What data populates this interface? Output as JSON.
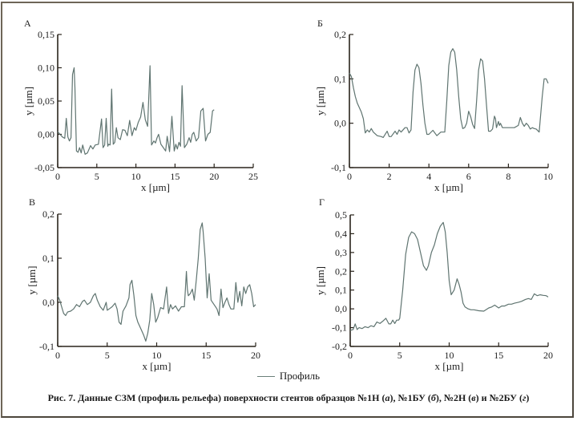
{
  "figure": {
    "legend_label": "Профиль",
    "caption": {
      "prefix": "Рис. 7. Данные СЗМ (профиль рельефа) поверхности стентов образцов №1Н (",
      "a": "а",
      "sep1": "), №1БУ (",
      "b": "б",
      "sep2": "), №2Н (",
      "c": "в",
      "sep3": ") и №2БУ (",
      "d": "г",
      "suffix": ")"
    },
    "line_color": "#5f7470",
    "axis_color": "#2a241c"
  },
  "chart_data": [
    {
      "type": "line",
      "panel": "А",
      "xlabel": "x [µm]",
      "ylabel": "y [µm]",
      "xlim": [
        0,
        25
      ],
      "ylim": [
        -0.05,
        0.15
      ],
      "xticks": [
        0,
        5,
        10,
        15,
        20,
        25
      ],
      "xtick_labels": [
        "0",
        "5",
        "10",
        "15",
        "20",
        "25"
      ],
      "yticks": [
        -0.05,
        0,
        0.05,
        0.1,
        0.15
      ],
      "ytick_labels": [
        "-0,05",
        "0,00",
        "0,05",
        "0,10",
        "0,15"
      ],
      "series": [
        {
          "name": "Профиль",
          "x": [
            0,
            0.3,
            0.6,
            0.9,
            1.1,
            1.3,
            1.5,
            1.7,
            1.9,
            2.1,
            2.2,
            2.4,
            2.6,
            2.8,
            3.0,
            3.2,
            3.5,
            3.8,
            4.2,
            4.5,
            4.8,
            5.2,
            5.6,
            5.8,
            6.0,
            6.2,
            6.4,
            6.5,
            6.7,
            6.9,
            7.1,
            7.3,
            7.5,
            7.7,
            8.0,
            8.3,
            8.6,
            8.9,
            9.2,
            9.5,
            9.8,
            10.0,
            10.3,
            10.6,
            10.9,
            11.2,
            11.5,
            11.8,
            12.0,
            12.3,
            12.5,
            12.7,
            12.9,
            13.2,
            13.5,
            13.8,
            14.0,
            14.3,
            14.6,
            14.9,
            15.1,
            15.3,
            15.5,
            15.7,
            15.9,
            16.2,
            16.5,
            16.8,
            17.0,
            17.2,
            17.4,
            17.7,
            18.0,
            18.3,
            18.6,
            18.9,
            19.2,
            19.5,
            19.8,
            20.0
          ],
          "y": [
            0.004,
            0.0,
            -0.004,
            -0.006,
            0.024,
            -0.004,
            -0.01,
            -0.005,
            0.09,
            0.1,
            0.07,
            -0.025,
            -0.027,
            -0.02,
            -0.028,
            -0.016,
            -0.03,
            -0.028,
            -0.017,
            -0.022,
            -0.016,
            -0.015,
            0.023,
            -0.02,
            -0.016,
            0.024,
            -0.018,
            -0.015,
            -0.016,
            0.068,
            -0.015,
            -0.012,
            0.01,
            -0.005,
            -0.008,
            0.007,
            0.006,
            -0.002,
            0.021,
            -0.002,
            0.01,
            0.006,
            0.018,
            0.026,
            0.048,
            0.022,
            0.012,
            0.103,
            -0.016,
            -0.01,
            -0.013,
            -0.005,
            0.0,
            -0.015,
            -0.02,
            -0.025,
            -0.003,
            -0.026,
            0.027,
            -0.025,
            -0.015,
            -0.022,
            -0.012,
            -0.018,
            0.073,
            -0.02,
            -0.015,
            -0.005,
            -0.012,
            0.0,
            0.003,
            -0.01,
            -0.005,
            0.035,
            0.039,
            -0.01,
            0.0,
            0.003,
            0.035,
            0.037
          ]
        }
      ]
    },
    {
      "type": "line",
      "panel": "Б",
      "xlabel": "x [µm]",
      "ylabel": "y [µm]",
      "xlim": [
        0,
        10
      ],
      "ylim": [
        -0.1,
        0.2
      ],
      "xticks": [
        0,
        2,
        4,
        6,
        8,
        10
      ],
      "xtick_labels": [
        "0",
        "2",
        "4",
        "6",
        "8",
        "10"
      ],
      "yticks": [
        -0.1,
        0.0,
        0.1,
        0.2
      ],
      "ytick_labels": [
        "-0,1",
        "0,0",
        "0,1",
        "0,2"
      ],
      "series": [
        {
          "name": "Профиль",
          "x": [
            0,
            0.1,
            0.2,
            0.3,
            0.4,
            0.5,
            0.6,
            0.7,
            0.8,
            0.9,
            1.0,
            1.1,
            1.2,
            1.4,
            1.6,
            1.7,
            1.9,
            2.0,
            2.1,
            2.3,
            2.4,
            2.5,
            2.6,
            2.8,
            2.9,
            3.0,
            3.1,
            3.2,
            3.3,
            3.4,
            3.5,
            3.6,
            3.7,
            3.8,
            3.9,
            4.0,
            4.2,
            4.4,
            4.6,
            4.8,
            4.9,
            5.0,
            5.1,
            5.2,
            5.3,
            5.4,
            5.5,
            5.6,
            5.7,
            5.8,
            5.9,
            6.0,
            6.1,
            6.2,
            6.3,
            6.4,
            6.5,
            6.6,
            6.7,
            6.8,
            6.9,
            7.0,
            7.1,
            7.2,
            7.3,
            7.35,
            7.4,
            7.5,
            7.55,
            7.6,
            7.7,
            8.0,
            8.3,
            8.5,
            8.6,
            8.7,
            8.8,
            8.9,
            9.0,
            9.1,
            9.2,
            9.3,
            9.4,
            9.55,
            9.7,
            9.8,
            9.9,
            10.0
          ],
          "y": [
            0.113,
            0.105,
            0.08,
            0.06,
            0.045,
            0.035,
            0.025,
            0.01,
            -0.022,
            -0.015,
            -0.02,
            -0.012,
            -0.02,
            -0.028,
            -0.03,
            -0.032,
            -0.018,
            -0.03,
            -0.03,
            -0.018,
            -0.025,
            -0.015,
            -0.02,
            -0.01,
            -0.01,
            -0.022,
            -0.015,
            0.07,
            0.12,
            0.133,
            0.125,
            0.09,
            0.04,
            0.0,
            -0.025,
            -0.025,
            -0.016,
            -0.028,
            -0.02,
            -0.02,
            0.05,
            0.13,
            0.16,
            0.168,
            0.16,
            0.12,
            0.06,
            0.01,
            -0.012,
            -0.01,
            0.0,
            0.027,
            0.015,
            -0.003,
            -0.012,
            0.05,
            0.12,
            0.145,
            0.14,
            0.1,
            0.04,
            -0.018,
            -0.018,
            -0.013,
            0.016,
            0.01,
            -0.01,
            0.004,
            -0.005,
            0.0,
            -0.01,
            -0.01,
            -0.01,
            -0.005,
            0.013,
            0.0,
            -0.007,
            0.0,
            -0.005,
            -0.013,
            -0.01,
            -0.012,
            -0.013,
            -0.02,
            0.06,
            0.1,
            0.1,
            0.09
          ]
        }
      ]
    },
    {
      "type": "line",
      "panel": "В",
      "xlabel": "x [µm]",
      "ylabel": "y [µm]",
      "xlim": [
        0,
        20
      ],
      "ylim": [
        -0.1,
        0.2
      ],
      "xticks": [
        0,
        5,
        10,
        15,
        20
      ],
      "xtick_labels": [
        "0",
        "5",
        "10",
        "15",
        "20"
      ],
      "yticks": [
        -0.1,
        0.0,
        0.1,
        0.2
      ],
      "ytick_labels": [
        "-0,1",
        "0,0",
        "0,1",
        "0,2"
      ],
      "series": [
        {
          "name": "Профиль",
          "x": [
            0,
            0.2,
            0.4,
            0.6,
            0.8,
            1.0,
            1.3,
            1.6,
            1.9,
            2.2,
            2.5,
            2.7,
            3.0,
            3.3,
            3.6,
            3.8,
            4.0,
            4.3,
            4.6,
            4.9,
            5.0,
            5.2,
            5.5,
            5.8,
            6.0,
            6.2,
            6.4,
            6.6,
            6.9,
            7.2,
            7.3,
            7.5,
            7.7,
            7.9,
            8.1,
            8.3,
            8.5,
            8.7,
            8.9,
            9.1,
            9.3,
            9.5,
            9.7,
            9.9,
            10.1,
            10.4,
            10.7,
            11.0,
            11.2,
            11.4,
            11.6,
            11.9,
            12.2,
            12.5,
            12.8,
            13.0,
            13.1,
            13.2,
            13.4,
            13.6,
            13.8,
            14.0,
            14.2,
            14.4,
            14.6,
            14.7,
            14.9,
            15.1,
            15.3,
            15.5,
            15.8,
            16.1,
            16.3,
            16.5,
            16.7,
            16.9,
            17.1,
            17.3,
            17.5,
            17.8,
            18.0,
            18.2,
            18.4,
            18.6,
            18.8,
            19.0,
            19.2,
            19.4,
            19.6,
            19.8,
            20.0
          ],
          "y": [
            0.015,
            0.005,
            -0.01,
            -0.025,
            -0.03,
            -0.022,
            -0.02,
            -0.015,
            -0.005,
            -0.01,
            0.002,
            0.005,
            -0.005,
            0.0,
            0.015,
            0.02,
            0.005,
            -0.01,
            -0.018,
            0.0,
            -0.018,
            -0.015,
            -0.01,
            -0.002,
            -0.015,
            -0.045,
            -0.05,
            -0.02,
            -0.008,
            0.01,
            0.04,
            0.05,
            0.015,
            -0.03,
            -0.045,
            -0.055,
            -0.065,
            -0.075,
            -0.088,
            -0.07,
            -0.04,
            0.02,
            -0.005,
            -0.045,
            -0.035,
            -0.012,
            -0.015,
            0.035,
            -0.025,
            -0.005,
            -0.015,
            -0.008,
            -0.02,
            -0.01,
            -0.01,
            0.07,
            0.03,
            0.015,
            0.02,
            0.03,
            0.005,
            0.05,
            0.1,
            0.165,
            0.18,
            0.16,
            0.1,
            0.01,
            0.065,
            0.005,
            -0.005,
            -0.015,
            -0.03,
            0.03,
            -0.012,
            0.0,
            0.01,
            -0.005,
            -0.015,
            -0.015,
            0.045,
            0.0,
            0.025,
            -0.008,
            0.035,
            0.02,
            0.035,
            0.04,
            0.02,
            -0.01,
            -0.005
          ]
        }
      ]
    },
    {
      "type": "line",
      "panel": "Г",
      "xlabel": "x [µm]",
      "ylabel": "y [µm]",
      "xlim": [
        0,
        20
      ],
      "ylim": [
        -0.2,
        0.5
      ],
      "xticks": [
        0,
        5,
        10,
        15,
        20
      ],
      "xtick_labels": [
        "0",
        "5",
        "10",
        "15",
        "20"
      ],
      "yticks": [
        -0.2,
        -0.1,
        0.0,
        0.1,
        0.2,
        0.3,
        0.4,
        0.5
      ],
      "ytick_labels": [
        "-0,2",
        "-0,1",
        "0,0",
        "0,1",
        "0,2",
        "0,3",
        "0,4",
        "0,5"
      ],
      "series": [
        {
          "name": "Профиль",
          "x": [
            0,
            0.3,
            0.5,
            0.7,
            0.9,
            1.2,
            1.5,
            1.8,
            2.1,
            2.4,
            2.7,
            3.0,
            3.3,
            3.6,
            3.9,
            4.1,
            4.3,
            4.5,
            4.7,
            4.9,
            5.0,
            5.3,
            5.6,
            5.9,
            6.2,
            6.5,
            6.8,
            7.1,
            7.4,
            7.7,
            7.9,
            8.2,
            8.5,
            8.8,
            9.1,
            9.4,
            9.6,
            9.8,
            10.0,
            10.2,
            10.5,
            10.8,
            11.0,
            11.2,
            11.4,
            11.6,
            11.9,
            12.2,
            12.5,
            13.0,
            13.5,
            14.0,
            14.3,
            14.6,
            15.0,
            15.3,
            15.6,
            16.0,
            16.3,
            16.6,
            17.0,
            17.3,
            17.7,
            18.0,
            18.3,
            18.6,
            18.9,
            19.2,
            19.5,
            19.8,
            20.0
          ],
          "y": [
            -0.115,
            -0.11,
            -0.08,
            -0.11,
            -0.1,
            -0.105,
            -0.095,
            -0.1,
            -0.09,
            -0.095,
            -0.07,
            -0.078,
            -0.065,
            -0.05,
            -0.08,
            -0.08,
            -0.06,
            -0.078,
            -0.06,
            -0.06,
            -0.05,
            0.1,
            0.29,
            0.38,
            0.41,
            0.4,
            0.37,
            0.3,
            0.23,
            0.205,
            0.23,
            0.3,
            0.34,
            0.4,
            0.44,
            0.46,
            0.41,
            0.3,
            0.15,
            0.075,
            0.1,
            0.16,
            0.13,
            0.09,
            0.03,
            0.01,
            0.0,
            -0.005,
            -0.005,
            -0.01,
            -0.012,
            0.005,
            0.01,
            0.02,
            0.005,
            0.015,
            0.015,
            0.025,
            0.025,
            0.03,
            0.035,
            0.04,
            0.05,
            0.055,
            0.05,
            0.08,
            0.07,
            0.075,
            0.072,
            0.07,
            0.063
          ]
        }
      ]
    }
  ]
}
